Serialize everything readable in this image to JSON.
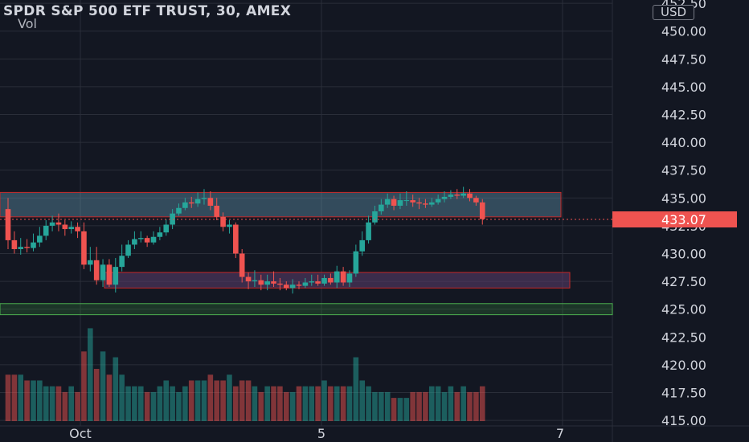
{
  "header": {
    "title": "SPDR S&P 500 ETF TRUST, 30, AMEX",
    "sub": "Vol",
    "currency": "USD"
  },
  "colors": {
    "background": "#131722",
    "up": "#26a69a",
    "down": "#ef5350",
    "grid": "#2a2e39",
    "price_label": "#ef5350",
    "resistance_zone": "#5b8ba5",
    "support_zone": "#4caf50"
  },
  "chart_data": {
    "type": "candlestick",
    "ylim": [
      414.5,
      452.8
    ],
    "y_ticks": [
      "452.50",
      "450.00",
      "447.50",
      "445.00",
      "442.50",
      "440.00",
      "437.50",
      "435.00",
      "432.50",
      "430.00",
      "427.50",
      "425.00",
      "422.50",
      "420.00",
      "417.50",
      "415.00"
    ],
    "x_ticks": [
      "Oct",
      "5",
      "7"
    ],
    "last_price": "433.07",
    "zones": [
      {
        "kind": "resistance",
        "from": 433.3,
        "to": 435.5
      },
      {
        "kind": "support",
        "from": 426.9,
        "to": 428.3
      },
      {
        "kind": "support",
        "from": 424.5,
        "to": 425.5
      }
    ],
    "candles": [
      [
        434.0,
        431.2,
        435.0,
        430.4
      ],
      [
        431.2,
        430.4,
        432.0,
        430.0
      ],
      [
        430.4,
        430.6,
        431.4,
        429.9
      ],
      [
        430.6,
        430.5,
        431.3,
        430.1
      ],
      [
        430.5,
        431.0,
        431.8,
        430.2
      ],
      [
        431.0,
        431.6,
        432.4,
        430.6
      ],
      [
        431.6,
        432.5,
        433.0,
        431.2
      ],
      [
        432.5,
        432.8,
        433.4,
        432.0
      ],
      [
        432.8,
        432.6,
        433.6,
        432.0
      ],
      [
        432.6,
        432.2,
        433.0,
        431.6
      ],
      [
        432.2,
        432.4,
        432.9,
        431.8
      ],
      [
        432.4,
        432.0,
        432.8,
        431.4
      ],
      [
        432.0,
        429.0,
        432.8,
        428.6
      ],
      [
        429.0,
        429.4,
        430.6,
        428.4
      ],
      [
        429.4,
        427.6,
        430.6,
        427.2
      ],
      [
        427.6,
        429.0,
        429.5,
        427.0
      ],
      [
        429.0,
        427.2,
        429.5,
        427.0
      ],
      [
        427.2,
        428.8,
        429.6,
        426.5
      ],
      [
        428.8,
        429.8,
        430.8,
        428.4
      ],
      [
        429.8,
        430.8,
        431.2,
        429.6
      ],
      [
        430.8,
        431.3,
        432.0,
        430.4
      ],
      [
        431.3,
        431.4,
        432.0,
        431.0
      ],
      [
        431.4,
        431.0,
        431.6,
        430.6
      ],
      [
        431.0,
        431.5,
        432.0,
        430.8
      ],
      [
        431.5,
        431.9,
        432.4,
        431.2
      ],
      [
        431.9,
        432.6,
        433.1,
        431.6
      ],
      [
        432.6,
        433.6,
        434.0,
        432.2
      ],
      [
        433.6,
        434.1,
        434.5,
        433.4
      ],
      [
        434.1,
        434.6,
        435.0,
        433.9
      ],
      [
        434.6,
        434.5,
        435.1,
        434.1
      ],
      [
        434.5,
        434.9,
        435.5,
        434.2
      ],
      [
        434.9,
        435.0,
        435.8,
        434.4
      ],
      [
        435.0,
        434.3,
        435.6,
        433.9
      ],
      [
        434.3,
        433.3,
        435.0,
        433.0
      ],
      [
        433.3,
        432.4,
        433.7,
        432.0
      ],
      [
        432.4,
        432.6,
        433.0,
        431.8
      ],
      [
        432.6,
        430.0,
        432.8,
        429.6
      ],
      [
        430.0,
        427.9,
        430.4,
        427.4
      ],
      [
        427.9,
        427.5,
        428.3,
        426.8
      ],
      [
        427.5,
        427.6,
        428.5,
        427.0
      ],
      [
        427.6,
        427.2,
        428.1,
        426.7
      ],
      [
        427.2,
        427.5,
        428.1,
        426.7
      ],
      [
        427.5,
        427.3,
        428.4,
        427.0
      ],
      [
        427.3,
        427.2,
        427.8,
        426.7
      ],
      [
        427.2,
        426.9,
        427.5,
        426.7
      ],
      [
        426.9,
        427.2,
        427.7,
        426.4
      ],
      [
        427.2,
        427.1,
        427.5,
        426.8
      ],
      [
        427.1,
        427.4,
        427.8,
        426.9
      ],
      [
        427.4,
        427.5,
        428.1,
        427.1
      ],
      [
        427.5,
        427.3,
        428.1,
        427.1
      ],
      [
        427.3,
        427.8,
        428.1,
        427.1
      ],
      [
        427.8,
        427.4,
        428.2,
        427.2
      ],
      [
        427.4,
        428.4,
        428.9,
        426.9
      ],
      [
        428.4,
        427.4,
        428.8,
        427.1
      ],
      [
        427.4,
        428.2,
        428.5,
        427.0
      ],
      [
        428.2,
        430.2,
        430.8,
        427.9
      ],
      [
        430.2,
        431.2,
        432.0,
        429.8
      ],
      [
        431.2,
        432.8,
        433.4,
        430.9
      ],
      [
        432.8,
        433.8,
        434.3,
        432.6
      ],
      [
        433.8,
        434.4,
        434.9,
        433.5
      ],
      [
        434.4,
        434.9,
        435.4,
        434.1
      ],
      [
        434.9,
        434.3,
        435.2,
        433.9
      ],
      [
        434.3,
        434.8,
        435.4,
        434.0
      ],
      [
        434.8,
        434.8,
        435.6,
        434.3
      ],
      [
        434.8,
        434.6,
        435.3,
        434.2
      ],
      [
        434.6,
        434.5,
        435.0,
        434.0
      ],
      [
        434.5,
        434.4,
        434.9,
        434.1
      ],
      [
        434.4,
        434.6,
        435.0,
        434.2
      ],
      [
        434.6,
        434.9,
        435.3,
        434.4
      ],
      [
        434.9,
        435.1,
        435.6,
        434.6
      ],
      [
        435.1,
        435.3,
        435.7,
        434.9
      ],
      [
        435.3,
        435.2,
        435.8,
        434.9
      ],
      [
        435.2,
        435.4,
        436.0,
        435.0
      ],
      [
        435.4,
        435.0,
        435.8,
        434.7
      ],
      [
        435.0,
        434.6,
        435.2,
        434.3
      ],
      [
        434.6,
        433.1,
        434.9,
        432.6
      ]
    ],
    "volume": [
      8,
      8,
      8,
      7,
      7,
      7,
      6,
      6,
      6,
      5,
      6,
      5,
      12,
      16,
      9,
      12,
      8,
      11,
      8,
      6,
      6,
      6,
      5,
      5,
      6,
      7,
      6,
      5,
      6,
      7,
      7,
      7,
      8,
      7,
      7,
      8,
      6,
      7,
      7,
      6,
      5,
      6,
      6,
      6,
      5,
      5,
      6,
      6,
      6,
      6,
      7,
      6,
      6,
      6,
      6,
      11,
      7,
      6,
      5,
      5,
      5,
      4,
      4,
      4,
      5,
      5,
      5,
      6,
      6,
      5,
      6,
      5,
      6,
      5,
      5,
      6
    ],
    "volume_scale": [
      1,
      18
    ]
  }
}
